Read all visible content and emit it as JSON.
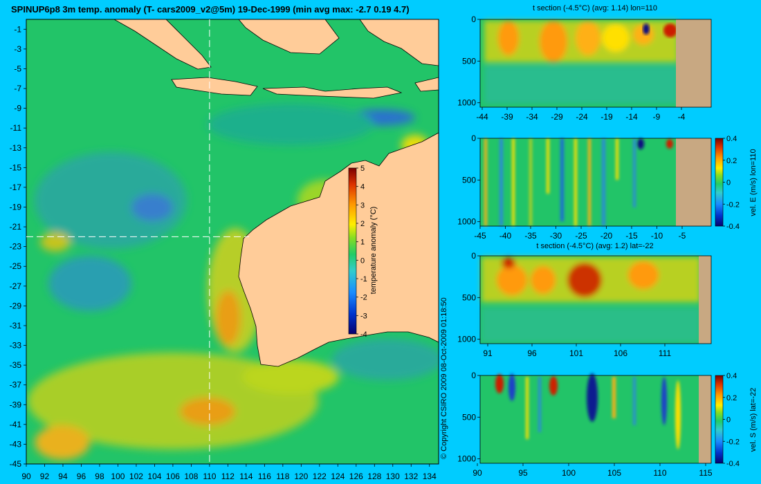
{
  "header": {
    "title": "SPINUP6p8 3m temp. anomaly (T- cars2009_v2@5m) 19-Dec-1999 (min avg max: -2.7 0.19 4.7)"
  },
  "copyright": "© Copyright CSIRO 2009   08-Oct-2009 01:18:50",
  "colors": {
    "background": "#00ccff",
    "land": "#ffcc99",
    "section_land": "#c8a882",
    "ocean_base": "#22c468",
    "guide_line": "#ffffff"
  },
  "chart_data": [
    {
      "id": "map",
      "type": "heatmap",
      "title": "SPINUP6p8 3m temp. anomaly (T- cars2009_v2@5m) 19-Dec-1999 (min avg max: -2.7 0.19 4.7)",
      "xlim": [
        90,
        135
      ],
      "ylim": [
        -45,
        0
      ],
      "x_ticks": [
        "90",
        "92",
        "94",
        "96",
        "98",
        "100",
        "102",
        "104",
        "106",
        "108",
        "110",
        "112",
        "114",
        "116",
        "118",
        "120",
        "122",
        "124",
        "126",
        "128",
        "130",
        "132",
        "134"
      ],
      "y_ticks": [
        "-1",
        "-3",
        "-5",
        "-7",
        "-9",
        "-11",
        "-13",
        "-15",
        "-17",
        "-19",
        "-21",
        "-23",
        "-25",
        "-27",
        "-29",
        "-31",
        "-33",
        "-35",
        "-37",
        "-39",
        "-41",
        "-43",
        "-45"
      ],
      "guide_lon": 110,
      "guide_lat": -22,
      "colorbar": {
        "label": "temperature anomaly (°C)",
        "ticks": [
          "5",
          "4",
          "3",
          "2",
          "1",
          "0",
          "-1",
          "-2",
          "-3",
          "-4"
        ],
        "range": [
          -4,
          5
        ]
      }
    },
    {
      "id": "t-section-lon",
      "type": "heatmap",
      "title": "t section (-4.5°C) (avg: 1.14) lon=110",
      "x_ticks": [
        "-44",
        "-39",
        "-34",
        "-29",
        "-24",
        "-19",
        "-14",
        "-9",
        "-4"
      ],
      "y_ticks": [
        "0",
        "500",
        "1000"
      ]
    },
    {
      "id": "vel-e-section",
      "type": "heatmap",
      "title": "",
      "x_ticks": [
        "-45",
        "-40",
        "-35",
        "-30",
        "-25",
        "-20",
        "-15",
        "-10",
        "-5"
      ],
      "y_ticks": [
        "0",
        "500",
        "1000"
      ],
      "colorbar": {
        "label": "vel. E (m/s) lon=110",
        "ticks": [
          "0.4",
          "0.2",
          "0",
          "-0.2",
          "-0.4"
        ],
        "range": [
          -0.4,
          0.4
        ]
      }
    },
    {
      "id": "t-section-lat",
      "type": "heatmap",
      "title": "t section (-4.5°C) (avg: 1.2) lat=-22",
      "x_ticks": [
        "91",
        "96",
        "101",
        "106",
        "111"
      ],
      "y_ticks": [
        "0",
        "500",
        "1000"
      ]
    },
    {
      "id": "vel-s-section",
      "type": "heatmap",
      "title": "",
      "x_ticks": [
        "90",
        "95",
        "100",
        "105",
        "110",
        "115"
      ],
      "y_ticks": [
        "0",
        "500",
        "1000"
      ],
      "colorbar": {
        "label": "vel. S (m/s) lat=-22",
        "ticks": [
          "0.4",
          "0.2",
          "0",
          "-0.2",
          "-0.4"
        ],
        "range": [
          -0.4,
          0.4
        ]
      }
    }
  ]
}
